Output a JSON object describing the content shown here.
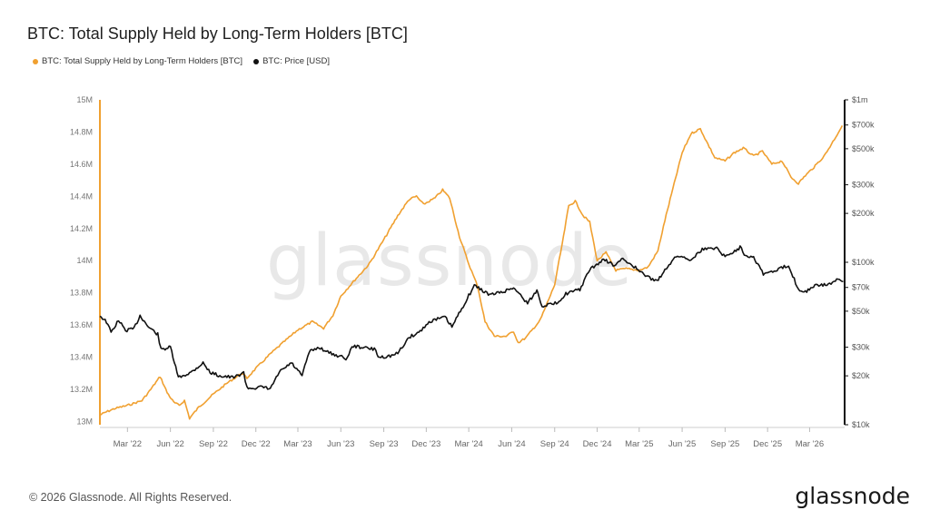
{
  "header": {
    "title": "BTC: Total Supply Held by Long-Term Holders [BTC]"
  },
  "footer": {
    "copyright": "© 2026 Glassnode. All Rights Reserved.",
    "brand": "glassnode"
  },
  "watermark": "glassnode",
  "colors": {
    "lth": "#f0a030",
    "price": "#111111",
    "axis": "#cfcfcf"
  },
  "chart_data": {
    "type": "line",
    "title": "BTC: Total Supply Held by Long-Term Holders [BTC]",
    "x_tick_labels": [
      "Mar '22",
      "Jun '22",
      "Sep '22",
      "Dec '22",
      "Mar '23",
      "Jun '23",
      "Sep '23",
      "Dec '23",
      "Mar '24",
      "Jun '24",
      "Sep '24",
      "Dec '24",
      "Mar '25",
      "Jun '25",
      "Sep '25",
      "Dec '25",
      "Mar '26"
    ],
    "x_tick_dates": [
      "2022-03-01",
      "2022-06-01",
      "2022-09-01",
      "2022-12-01",
      "2023-03-01",
      "2023-06-01",
      "2023-09-01",
      "2023-12-01",
      "2024-03-01",
      "2024-06-01",
      "2024-09-01",
      "2024-12-01",
      "2025-03-01",
      "2025-06-01",
      "2025-09-01",
      "2025-12-01",
      "2026-03-01"
    ],
    "x_range": [
      "2022-01-01",
      "2026-05-15"
    ],
    "left_axis": {
      "ylim": [
        12980000,
        15000000
      ],
      "ticks": [
        13000000,
        13200000,
        13400000,
        13600000,
        13800000,
        14000000,
        14200000,
        14400000,
        14600000,
        14800000,
        15000000
      ],
      "tick_labels": [
        "13M",
        "13.2M",
        "13.4M",
        "13.6M",
        "13.8M",
        "14M",
        "14.2M",
        "14.4M",
        "14.6M",
        "14.8M",
        "15M"
      ]
    },
    "right_axis": {
      "scale": "log",
      "ylim": [
        10000,
        1000000
      ],
      "ticks": [
        10000,
        20000,
        30000,
        50000,
        70000,
        100000,
        200000,
        300000,
        500000,
        700000,
        1000000
      ],
      "tick_labels": [
        "$10k",
        "$20k",
        "$30k",
        "$50k",
        "$70k",
        "$100k",
        "$200k",
        "$300k",
        "$500k",
        "$700k",
        "$1m"
      ]
    },
    "legend_placement": "top-left",
    "grid": false,
    "series": [
      {
        "name": "BTC: Total Supply Held by Long-Term Holders [BTC]",
        "axis": "left",
        "color": "#f0a030",
        "points": [
          [
            "2022-01-01",
            13040000
          ],
          [
            "2022-01-15",
            13060000
          ],
          [
            "2022-02-01",
            13080000
          ],
          [
            "2022-03-01",
            13100000
          ],
          [
            "2022-04-01",
            13130000
          ],
          [
            "2022-04-20",
            13200000
          ],
          [
            "2022-05-10",
            13280000
          ],
          [
            "2022-05-25",
            13180000
          ],
          [
            "2022-06-08",
            13120000
          ],
          [
            "2022-06-20",
            13100000
          ],
          [
            "2022-07-01",
            13130000
          ],
          [
            "2022-07-12",
            13020000
          ],
          [
            "2022-08-01",
            13090000
          ],
          [
            "2022-09-01",
            13170000
          ],
          [
            "2022-10-01",
            13240000
          ],
          [
            "2022-11-01",
            13300000
          ],
          [
            "2022-11-12",
            13270000
          ],
          [
            "2022-12-01",
            13330000
          ],
          [
            "2023-01-01",
            13420000
          ],
          [
            "2023-02-01",
            13500000
          ],
          [
            "2023-03-01",
            13570000
          ],
          [
            "2023-04-01",
            13620000
          ],
          [
            "2023-04-25",
            13580000
          ],
          [
            "2023-05-15",
            13660000
          ],
          [
            "2023-06-01",
            13780000
          ],
          [
            "2023-07-01",
            13880000
          ],
          [
            "2023-08-01",
            13980000
          ],
          [
            "2023-09-01",
            14130000
          ],
          [
            "2023-10-01",
            14280000
          ],
          [
            "2023-10-25",
            14380000
          ],
          [
            "2023-11-10",
            14400000
          ],
          [
            "2023-11-25",
            14350000
          ],
          [
            "2023-12-20",
            14390000
          ],
          [
            "2024-01-05",
            14440000
          ],
          [
            "2024-01-20",
            14390000
          ],
          [
            "2024-02-10",
            14150000
          ],
          [
            "2024-03-01",
            13980000
          ],
          [
            "2024-03-20",
            13840000
          ],
          [
            "2024-04-05",
            13620000
          ],
          [
            "2024-04-25",
            13530000
          ],
          [
            "2024-05-20",
            13530000
          ],
          [
            "2024-06-05",
            13560000
          ],
          [
            "2024-06-15",
            13490000
          ],
          [
            "2024-07-01",
            13520000
          ],
          [
            "2024-08-01",
            13630000
          ],
          [
            "2024-09-01",
            13850000
          ],
          [
            "2024-09-20",
            14150000
          ],
          [
            "2024-10-01",
            14340000
          ],
          [
            "2024-10-15",
            14370000
          ],
          [
            "2024-11-01",
            14280000
          ],
          [
            "2024-11-15",
            14240000
          ],
          [
            "2024-12-01",
            14000000
          ],
          [
            "2024-12-20",
            14050000
          ],
          [
            "2025-01-10",
            13940000
          ],
          [
            "2025-02-01",
            13950000
          ],
          [
            "2025-03-01",
            13940000
          ],
          [
            "2025-03-20",
            13960000
          ],
          [
            "2025-04-10",
            14060000
          ],
          [
            "2025-04-25",
            14250000
          ],
          [
            "2025-05-15",
            14480000
          ],
          [
            "2025-06-01",
            14670000
          ],
          [
            "2025-06-20",
            14790000
          ],
          [
            "2025-07-10",
            14820000
          ],
          [
            "2025-07-20",
            14760000
          ],
          [
            "2025-08-10",
            14640000
          ],
          [
            "2025-09-01",
            14620000
          ],
          [
            "2025-09-20",
            14670000
          ],
          [
            "2025-10-10",
            14700000
          ],
          [
            "2025-11-01",
            14650000
          ],
          [
            "2025-11-20",
            14680000
          ],
          [
            "2025-12-10",
            14600000
          ],
          [
            "2026-01-01",
            14620000
          ],
          [
            "2026-01-20",
            14520000
          ],
          [
            "2026-02-05",
            14480000
          ],
          [
            "2026-02-20",
            14530000
          ],
          [
            "2026-03-10",
            14580000
          ],
          [
            "2026-04-01",
            14650000
          ],
          [
            "2026-04-20",
            14740000
          ],
          [
            "2026-05-10",
            14840000
          ]
        ]
      },
      {
        "name": "BTC: Price [USD]",
        "axis": "right",
        "color": "#111111",
        "points": [
          [
            "2022-01-01",
            47000
          ],
          [
            "2022-01-15",
            43000
          ],
          [
            "2022-01-25",
            37000
          ],
          [
            "2022-02-10",
            44000
          ],
          [
            "2022-02-25",
            38000
          ],
          [
            "2022-03-15",
            39000
          ],
          [
            "2022-03-28",
            47000
          ],
          [
            "2022-04-15",
            40000
          ],
          [
            "2022-05-05",
            36000
          ],
          [
            "2022-05-12",
            29000
          ],
          [
            "2022-06-01",
            30000
          ],
          [
            "2022-06-18",
            19500
          ],
          [
            "2022-07-15",
            21000
          ],
          [
            "2022-08-10",
            24000
          ],
          [
            "2022-08-25",
            21000
          ],
          [
            "2022-09-15",
            20000
          ],
          [
            "2022-10-15",
            19500
          ],
          [
            "2022-11-05",
            21000
          ],
          [
            "2022-11-12",
            16800
          ],
          [
            "2022-12-15",
            17000
          ],
          [
            "2023-01-01",
            16600
          ],
          [
            "2023-01-20",
            21000
          ],
          [
            "2023-02-15",
            24000
          ],
          [
            "2023-03-10",
            20000
          ],
          [
            "2023-03-25",
            28000
          ],
          [
            "2023-04-15",
            30000
          ],
          [
            "2023-05-10",
            27500
          ],
          [
            "2023-06-15",
            25500
          ],
          [
            "2023-06-25",
            30500
          ],
          [
            "2023-07-15",
            30000
          ],
          [
            "2023-08-15",
            29000
          ],
          [
            "2023-08-20",
            26000
          ],
          [
            "2023-09-15",
            26500
          ],
          [
            "2023-10-01",
            27500
          ],
          [
            "2023-10-25",
            34500
          ],
          [
            "2023-11-15",
            37000
          ],
          [
            "2023-12-10",
            43500
          ],
          [
            "2024-01-10",
            46000
          ],
          [
            "2024-01-25",
            40000
          ],
          [
            "2024-02-15",
            52000
          ],
          [
            "2024-03-13",
            72000
          ],
          [
            "2024-04-15",
            63000
          ],
          [
            "2024-05-15",
            66000
          ],
          [
            "2024-06-05",
            70000
          ],
          [
            "2024-07-05",
            56000
          ],
          [
            "2024-07-25",
            67000
          ],
          [
            "2024-08-05",
            54000
          ],
          [
            "2024-09-05",
            56000
          ],
          [
            "2024-09-25",
            64000
          ],
          [
            "2024-10-25",
            68000
          ],
          [
            "2024-11-15",
            90000
          ],
          [
            "2024-12-15",
            104000
          ],
          [
            "2025-01-10",
            95000
          ],
          [
            "2025-01-22",
            105000
          ],
          [
            "2025-02-15",
            96000
          ],
          [
            "2025-03-05",
            86000
          ],
          [
            "2025-04-08",
            76000
          ],
          [
            "2025-05-01",
            95000
          ],
          [
            "2025-05-22",
            110000
          ],
          [
            "2025-06-20",
            104000
          ],
          [
            "2025-07-14",
            120000
          ],
          [
            "2025-08-14",
            123000
          ],
          [
            "2025-09-01",
            108000
          ],
          [
            "2025-10-06",
            125000
          ],
          [
            "2025-10-12",
            111000
          ],
          [
            "2025-11-01",
            108000
          ],
          [
            "2025-11-22",
            85000
          ],
          [
            "2025-12-15",
            88000
          ],
          [
            "2026-01-15",
            96000
          ],
          [
            "2026-02-05",
            68000
          ],
          [
            "2026-02-20",
            66000
          ],
          [
            "2026-03-15",
            72000
          ],
          [
            "2026-04-10",
            73000
          ],
          [
            "2026-05-01",
            78000
          ],
          [
            "2026-05-12",
            76000
          ]
        ]
      }
    ]
  }
}
